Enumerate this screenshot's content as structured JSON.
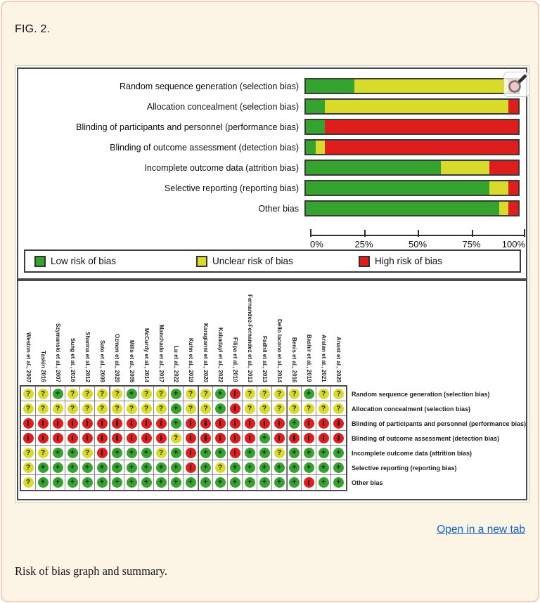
{
  "fig_label": "FIG. 2.",
  "caption": "Risk of bias graph and summary.",
  "open_link": "Open in a new tab",
  "colors": {
    "low": "#34a42f",
    "unclear": "#d8da2c",
    "high": "#e01d1d",
    "link": "#1565c0"
  },
  "legend": [
    {
      "key": "low",
      "label": "Low risk of bias"
    },
    {
      "key": "unclear",
      "label": "Unclear risk of bias"
    },
    {
      "key": "high",
      "label": "High risk of bias"
    }
  ],
  "chart_data": [
    {
      "type": "bar",
      "stacked": true,
      "orientation": "horizontal",
      "title": "Risk of bias graph",
      "categories": [
        "Random sequence generation (selection bias)",
        "Allocation concealment (selection bias)",
        "Blinding of participants and personnel (performance bias)",
        "Blinding of outcome assessment (detection bias)",
        "Incomplete outcome data (attrition bias)",
        "Selective reporting (reporting bias)",
        "Other bias"
      ],
      "series": [
        {
          "name": "Low risk of bias",
          "key": "low",
          "values": [
            22.7,
            9.1,
            9.1,
            4.5,
            63.6,
            86.4,
            90.9
          ]
        },
        {
          "name": "Unclear risk of bias",
          "key": "unclear",
          "values": [
            72.7,
            86.4,
            0,
            4.5,
            22.7,
            9.1,
            4.5
          ]
        },
        {
          "name": "High risk of bias",
          "key": "high",
          "values": [
            4.5,
            4.5,
            90.9,
            90.9,
            13.6,
            4.5,
            4.5
          ]
        }
      ],
      "x_ticks": [
        "0%",
        "25%",
        "50%",
        "75%",
        "100%"
      ],
      "xlim": [
        0,
        100
      ],
      "legend_position": "bottom"
    },
    {
      "type": "table",
      "title": "Risk of bias summary",
      "columns": [
        "Weston et al., 2007",
        "Taskin 2016",
        "Szymanski et al., 2007",
        "Sung et al., 2016",
        "Sharma et al., 2012",
        "Sato et al., 2009",
        "Ozmen et al., 2020",
        "Mills et al., 2005",
        "McCurdy et al., 2014",
        "Manchado et al., 2017",
        "Lu et al., 2022",
        "Kuhn et al., 2019",
        "Karagianni et al., 2020",
        "Kabadayi et al., 2022",
        "Filipa et al., 2010",
        "Fernandez-Fernandez et al., 2013",
        "Fadhil et al., 2013",
        "Dello Iacono et al., 2014",
        "Benis et al., 2016",
        "Bashir et al., 2019",
        "Arslan et al., 2021",
        "Anant et al., 2020"
      ],
      "rows": [
        "Random sequence generation (selection bias)",
        "Allocation concealment (selection bias)",
        "Blinding of participants and personnel (performance bias)",
        "Blinding of outcome assessment (detection bias)",
        "Incomplete outcome data (attrition bias)",
        "Selective reporting (reporting bias)",
        "Other bias"
      ],
      "symbol_meaning": {
        "+": "Low risk",
        "?": "Unclear risk",
        "-": "High risk"
      },
      "cells": [
        [
          "?",
          "?",
          "+",
          "?",
          "?",
          "?",
          "?",
          "+",
          "?",
          "?",
          "+",
          "?",
          "?",
          "+",
          "-",
          "?",
          "?",
          "?",
          "?",
          "+",
          "?",
          "?"
        ],
        [
          "?",
          "?",
          "?",
          "?",
          "?",
          "?",
          "?",
          "?",
          "?",
          "?",
          "+",
          "?",
          "?",
          "+",
          "-",
          "?",
          "?",
          "?",
          "?",
          "?",
          "?",
          "?"
        ],
        [
          "-",
          "-",
          "-",
          "-",
          "-",
          "-",
          "-",
          "-",
          "-",
          "-",
          "+",
          "-",
          "-",
          "-",
          "-",
          "-",
          "-",
          "-",
          "+",
          "-",
          "-",
          "-"
        ],
        [
          "-",
          "-",
          "-",
          "-",
          "-",
          "-",
          "-",
          "-",
          "-",
          "-",
          "?",
          "-",
          "-",
          "-",
          "-",
          "-",
          "+",
          "-",
          "-",
          "-",
          "-",
          "-"
        ],
        [
          "?",
          "?",
          "+",
          "+",
          "?",
          "-",
          "+",
          "+",
          "+",
          "?",
          "+",
          "-",
          "+",
          "+",
          "-",
          "+",
          "+",
          "?",
          "+",
          "+",
          "+",
          "+"
        ],
        [
          "?",
          "+",
          "+",
          "+",
          "+",
          "+",
          "+",
          "+",
          "+",
          "+",
          "+",
          "-",
          "+",
          "?",
          "+",
          "+",
          "+",
          "+",
          "+",
          "+",
          "+",
          "+"
        ],
        [
          "?",
          "+",
          "+",
          "+",
          "+",
          "+",
          "+",
          "+",
          "+",
          "+",
          "+",
          "+",
          "+",
          "+",
          "+",
          "+",
          "+",
          "+",
          "+",
          "-",
          "+",
          "+"
        ]
      ]
    }
  ]
}
